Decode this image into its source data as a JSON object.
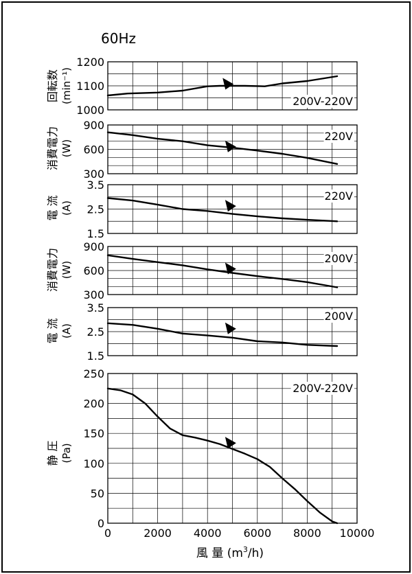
{
  "title": "60Hz",
  "xlabel": "風 量 (m³/h)",
  "x_ticks": [
    "0",
    "2000",
    "4000",
    "6000",
    "8000",
    "10000"
  ],
  "colors": {
    "line": "#000000",
    "grid": "#000000",
    "background": "#ffffff"
  },
  "chart_data": [
    {
      "type": "line",
      "ylabel": [
        "回転数",
        "(min⁻¹)"
      ],
      "annotation": "200V-220V",
      "xlim": [
        0,
        10000
      ],
      "ylim": [
        1000,
        1200
      ],
      "y_ticks": [
        "1000",
        "1100",
        "1200"
      ],
      "operating_point": [
        4800,
        1110
      ],
      "series": [
        {
          "x": [
            0,
            800,
            2000,
            3000,
            4000,
            4500,
            5500,
            6300,
            7000,
            8000,
            8600,
            9200
          ],
          "y": [
            1060,
            1068,
            1072,
            1080,
            1098,
            1100,
            1100,
            1098,
            1110,
            1120,
            1130,
            1140
          ]
        }
      ]
    },
    {
      "type": "line",
      "ylabel": [
        "消費電力",
        "(W)"
      ],
      "annotation": "220V",
      "xlim": [
        0,
        10000
      ],
      "ylim": [
        300,
        900
      ],
      "y_ticks": [
        "300",
        "600",
        "900"
      ],
      "operating_point": [
        4900,
        640
      ],
      "series": [
        {
          "x": [
            0,
            1000,
            2000,
            3000,
            4000,
            5000,
            6000,
            7000,
            8000,
            9200
          ],
          "y": [
            810,
            775,
            730,
            700,
            650,
            620,
            585,
            545,
            495,
            420
          ]
        }
      ]
    },
    {
      "type": "line",
      "ylabel": [
        "電 流",
        "(A)"
      ],
      "annotation": "220V",
      "xlim": [
        0,
        10000
      ],
      "ylim": [
        1.5,
        3.5
      ],
      "y_ticks": [
        "1.5",
        "2.5",
        "3.5"
      ],
      "operating_point": [
        4900,
        2.65
      ],
      "series": [
        {
          "x": [
            0,
            1000,
            2000,
            3000,
            4000,
            5000,
            6000,
            7000,
            8000,
            9200
          ],
          "y": [
            2.95,
            2.85,
            2.68,
            2.5,
            2.42,
            2.3,
            2.2,
            2.12,
            2.06,
            2.0
          ]
        }
      ]
    },
    {
      "type": "line",
      "ylabel": [
        "消費電力",
        "(W)"
      ],
      "annotation": "200V",
      "xlim": [
        0,
        10000
      ],
      "ylim": [
        300,
        900
      ],
      "y_ticks": [
        "300",
        "600",
        "900"
      ],
      "operating_point": [
        4900,
        630
      ],
      "series": [
        {
          "x": [
            0,
            1000,
            2000,
            3000,
            4000,
            5000,
            6000,
            7000,
            8000,
            9200
          ],
          "y": [
            790,
            745,
            705,
            665,
            615,
            570,
            530,
            495,
            455,
            390
          ]
        }
      ]
    },
    {
      "type": "line",
      "ylabel": [
        "電 流",
        "(A)"
      ],
      "annotation": "200V",
      "xlim": [
        0,
        10000
      ],
      "ylim": [
        1.5,
        3.5
      ],
      "y_ticks": [
        "1.5",
        "2.5",
        "3.5"
      ],
      "operating_point": [
        4900,
        2.65
      ],
      "series": [
        {
          "x": [
            0,
            1000,
            2000,
            3000,
            4000,
            5000,
            6000,
            7000,
            8000,
            9200
          ],
          "y": [
            2.85,
            2.78,
            2.62,
            2.42,
            2.34,
            2.25,
            2.1,
            2.05,
            1.95,
            1.9
          ]
        }
      ]
    },
    {
      "type": "line",
      "ylabel": [
        "静 圧",
        "(Pa)"
      ],
      "annotation": "200V-220V",
      "xlim": [
        0,
        10000
      ],
      "ylim": [
        0,
        250
      ],
      "y_ticks": [
        "0",
        "50",
        "100",
        "150",
        "200",
        "250"
      ],
      "operating_point": [
        4900,
        135
      ],
      "series": [
        {
          "x": [
            0,
            500,
            1000,
            1500,
            2000,
            2500,
            3000,
            3500,
            4000,
            4500,
            5000,
            5500,
            6000,
            6500,
            7000,
            7500,
            8000,
            8500,
            9000,
            9200
          ],
          "y": [
            225,
            222,
            215,
            200,
            178,
            158,
            147,
            143,
            138,
            132,
            124,
            116,
            107,
            94,
            75,
            57,
            37,
            18,
            3,
            0
          ]
        }
      ]
    }
  ]
}
